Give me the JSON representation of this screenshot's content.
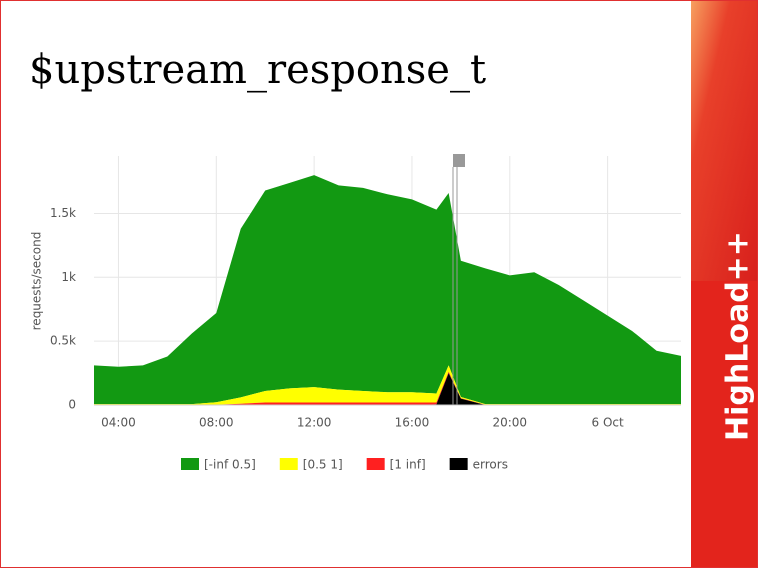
{
  "brand": "HighLoad++",
  "chart_data": {
    "type": "stacked-area",
    "title": "$upstream_response_t",
    "ylabel": "requests/second",
    "x": [
      3,
      4,
      5,
      6,
      7,
      8,
      9,
      10,
      11,
      12,
      13,
      14,
      15,
      16,
      17,
      17.5,
      18,
      19,
      20,
      21,
      22,
      23,
      24,
      25,
      26,
      27
    ],
    "xlim": [
      3,
      27
    ],
    "xticks": [
      {
        "value": 4,
        "label": "04:00"
      },
      {
        "value": 8,
        "label": "08:00"
      },
      {
        "value": 12,
        "label": "12:00"
      },
      {
        "value": 16,
        "label": "16:00"
      },
      {
        "value": 20,
        "label": "20:00"
      },
      {
        "value": 24,
        "label": "6 Oct"
      }
    ],
    "ylim": [
      0,
      1950
    ],
    "yticks": [
      0,
      {
        "value": 500,
        "label": "0.5k"
      },
      {
        "value": 1000,
        "label": "1k"
      },
      {
        "value": 1500,
        "label": "1.5k"
      }
    ],
    "grid": true,
    "series": [
      {
        "name": "[-inf 0.5]",
        "color": "#129912",
        "values": [
          303,
          293,
          303,
          373,
          553,
          698,
          1320,
          1570,
          1610,
          1660,
          1600,
          1590,
          1550,
          1510,
          1440,
          1350,
          1067,
          1063,
          1008,
          1033,
          933,
          813,
          693,
          573,
          418,
          378
        ]
      },
      {
        "name": "[0.5 1]",
        "color": "#ffff00",
        "values": [
          5,
          5,
          5,
          5,
          5,
          20,
          50,
          90,
          110,
          120,
          100,
          90,
          80,
          80,
          70,
          50,
          10,
          5,
          5,
          5,
          5,
          5,
          5,
          5,
          5,
          5
        ]
      },
      {
        "name": "[1 inf]",
        "color": "#ff2020",
        "values": [
          2,
          2,
          2,
          2,
          2,
          2,
          10,
          20,
          20,
          20,
          20,
          20,
          20,
          20,
          15,
          10,
          3,
          2,
          2,
          2,
          2,
          2,
          2,
          2,
          2,
          2
        ]
      },
      {
        "name": "errors",
        "color": "#000000",
        "values": [
          0,
          0,
          0,
          0,
          0,
          0,
          0,
          0,
          0,
          0,
          0,
          0,
          0,
          0,
          5,
          250,
          50,
          0,
          0,
          0,
          0,
          0,
          0,
          0,
          0,
          0
        ]
      }
    ]
  }
}
